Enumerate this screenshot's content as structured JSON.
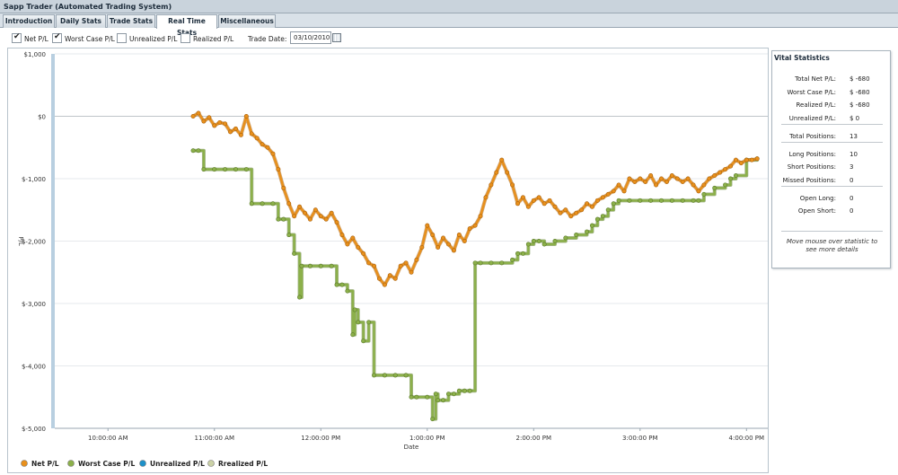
{
  "window": {
    "title": "Sapp Trader (Automated Trading System)"
  },
  "tabs": [
    {
      "label": "Introduction",
      "active": false
    },
    {
      "label": "Daily Stats",
      "active": false
    },
    {
      "label": "Trade Stats",
      "active": false
    },
    {
      "label": "Real Time Stats",
      "active": true
    },
    {
      "label": "Miscellaneous",
      "active": false
    }
  ],
  "toolbar": {
    "checkboxes": [
      {
        "label": "Net P/L",
        "checked": true
      },
      {
        "label": "Worst Case P/L",
        "checked": true
      },
      {
        "label": "Unrealized P/L",
        "checked": false
      },
      {
        "label": "Realized P/L",
        "checked": false
      }
    ],
    "trade_date_label": "Trade Date:",
    "trade_date_value": "03/10/2010"
  },
  "vital_statistics": {
    "title": "Vital Statistics",
    "groups": [
      [
        {
          "label": "Total Net P/L:",
          "value": "$ -680"
        },
        {
          "label": "Worst Case P/L:",
          "value": "$ -680"
        },
        {
          "label": "Realized P/L:",
          "value": "$ -680"
        },
        {
          "label": "Unrealized P/L:",
          "value": "$ 0"
        }
      ],
      [
        {
          "label": "Total Positions:",
          "value": "13"
        }
      ],
      [
        {
          "label": "Long Positions:",
          "value": "10"
        },
        {
          "label": "Short Positions:",
          "value": "3"
        },
        {
          "label": "Missed Positions:",
          "value": "0"
        }
      ],
      [
        {
          "label": "Open Long:",
          "value": "0"
        },
        {
          "label": "Open Short:",
          "value": "0"
        }
      ]
    ],
    "hint": "Move mouse over statistic to see more details"
  },
  "chart_data": {
    "type": "line",
    "xlabel": "Date",
    "ylabel": "P/L",
    "x_unit": "hours (time of day)",
    "xlim": [
      9.5,
      16.2
    ],
    "ylim": [
      -5000,
      1000
    ],
    "y_ticks": [
      1000,
      0,
      -1000,
      -2000,
      -3000,
      -4000,
      -5000
    ],
    "y_tick_labels": [
      "$1,000",
      "$0",
      "$-1,000",
      "$-2,000",
      "$-3,000",
      "$-4,000",
      "$-5,000"
    ],
    "x_ticks": [
      10,
      11,
      12,
      13,
      14,
      15,
      16
    ],
    "x_tick_labels": [
      "10:00:00 AM",
      "11:00:00 AM",
      "12:00:00 PM",
      "1:00:00 PM",
      "2:00:00 PM",
      "3:00:00 PM",
      "4:00:00 PM"
    ],
    "grid": true,
    "legend_position": "bottom",
    "series": [
      {
        "name": "Net P/L",
        "color": "#e8901c",
        "visible": true,
        "points": [
          [
            10.8,
            0
          ],
          [
            10.85,
            50
          ],
          [
            10.9,
            -80
          ],
          [
            10.95,
            -20
          ],
          [
            11.0,
            -150
          ],
          [
            11.05,
            -100
          ],
          [
            11.1,
            -120
          ],
          [
            11.15,
            -250
          ],
          [
            11.2,
            -200
          ],
          [
            11.25,
            -300
          ],
          [
            11.3,
            0
          ],
          [
            11.35,
            -280
          ],
          [
            11.4,
            -350
          ],
          [
            11.45,
            -450
          ],
          [
            11.5,
            -500
          ],
          [
            11.55,
            -600
          ],
          [
            11.6,
            -850
          ],
          [
            11.65,
            -1150
          ],
          [
            11.7,
            -1400
          ],
          [
            11.75,
            -1600
          ],
          [
            11.8,
            -1450
          ],
          [
            11.85,
            -1550
          ],
          [
            11.9,
            -1650
          ],
          [
            11.95,
            -1500
          ],
          [
            12.0,
            -1600
          ],
          [
            12.05,
            -1650
          ],
          [
            12.1,
            -1550
          ],
          [
            12.15,
            -1700
          ],
          [
            12.2,
            -1900
          ],
          [
            12.25,
            -2050
          ],
          [
            12.3,
            -1950
          ],
          [
            12.35,
            -2100
          ],
          [
            12.4,
            -2200
          ],
          [
            12.45,
            -2350
          ],
          [
            12.5,
            -2400
          ],
          [
            12.55,
            -2600
          ],
          [
            12.6,
            -2700
          ],
          [
            12.65,
            -2550
          ],
          [
            12.7,
            -2600
          ],
          [
            12.75,
            -2400
          ],
          [
            12.8,
            -2350
          ],
          [
            12.85,
            -2500
          ],
          [
            12.9,
            -2300
          ],
          [
            12.95,
            -2100
          ],
          [
            13.0,
            -1750
          ],
          [
            13.05,
            -1900
          ],
          [
            13.1,
            -2100
          ],
          [
            13.15,
            -1950
          ],
          [
            13.2,
            -2050
          ],
          [
            13.25,
            -2150
          ],
          [
            13.3,
            -1900
          ],
          [
            13.35,
            -2000
          ],
          [
            13.4,
            -1800
          ],
          [
            13.45,
            -1750
          ],
          [
            13.5,
            -1600
          ],
          [
            13.55,
            -1300
          ],
          [
            13.6,
            -1100
          ],
          [
            13.65,
            -900
          ],
          [
            13.7,
            -700
          ],
          [
            13.75,
            -900
          ],
          [
            13.8,
            -1100
          ],
          [
            13.85,
            -1400
          ],
          [
            13.9,
            -1300
          ],
          [
            13.95,
            -1450
          ],
          [
            14.0,
            -1350
          ],
          [
            14.05,
            -1300
          ],
          [
            14.1,
            -1400
          ],
          [
            14.15,
            -1350
          ],
          [
            14.2,
            -1450
          ],
          [
            14.25,
            -1550
          ],
          [
            14.3,
            -1500
          ],
          [
            14.35,
            -1600
          ],
          [
            14.4,
            -1550
          ],
          [
            14.45,
            -1500
          ],
          [
            14.5,
            -1400
          ],
          [
            14.55,
            -1450
          ],
          [
            14.6,
            -1350
          ],
          [
            14.65,
            -1300
          ],
          [
            14.7,
            -1250
          ],
          [
            14.75,
            -1200
          ],
          [
            14.8,
            -1100
          ],
          [
            14.85,
            -1200
          ],
          [
            14.9,
            -1000
          ],
          [
            14.95,
            -1050
          ],
          [
            15.0,
            -1000
          ],
          [
            15.05,
            -1050
          ],
          [
            15.1,
            -950
          ],
          [
            15.15,
            -1100
          ],
          [
            15.2,
            -1000
          ],
          [
            15.25,
            -1050
          ],
          [
            15.3,
            -950
          ],
          [
            15.35,
            -1000
          ],
          [
            15.4,
            -1050
          ],
          [
            15.45,
            -1000
          ],
          [
            15.5,
            -1100
          ],
          [
            15.55,
            -1200
          ],
          [
            15.6,
            -1100
          ],
          [
            15.65,
            -1000
          ],
          [
            15.7,
            -950
          ],
          [
            15.75,
            -900
          ],
          [
            15.8,
            -850
          ],
          [
            15.85,
            -800
          ],
          [
            15.9,
            -700
          ],
          [
            15.95,
            -750
          ],
          [
            16.0,
            -700
          ],
          [
            16.05,
            -700
          ],
          [
            16.1,
            -680
          ]
        ]
      },
      {
        "name": "Worst Case P/L",
        "color": "#8cb04a",
        "visible": true,
        "points": [
          [
            10.8,
            -550
          ],
          [
            10.85,
            -550
          ],
          [
            10.9,
            -850
          ],
          [
            11.0,
            -850
          ],
          [
            11.1,
            -850
          ],
          [
            11.2,
            -850
          ],
          [
            11.3,
            -850
          ],
          [
            11.35,
            -1400
          ],
          [
            11.45,
            -1400
          ],
          [
            11.55,
            -1400
          ],
          [
            11.6,
            -1650
          ],
          [
            11.65,
            -1650
          ],
          [
            11.7,
            -1900
          ],
          [
            11.75,
            -2200
          ],
          [
            11.8,
            -2900
          ],
          [
            11.82,
            -2400
          ],
          [
            11.9,
            -2400
          ],
          [
            12.0,
            -2400
          ],
          [
            12.1,
            -2400
          ],
          [
            12.15,
            -2700
          ],
          [
            12.2,
            -2700
          ],
          [
            12.25,
            -2800
          ],
          [
            12.3,
            -3500
          ],
          [
            12.32,
            -3100
          ],
          [
            12.35,
            -3300
          ],
          [
            12.4,
            -3600
          ],
          [
            12.45,
            -3300
          ],
          [
            12.5,
            -4150
          ],
          [
            12.6,
            -4150
          ],
          [
            12.7,
            -4150
          ],
          [
            12.8,
            -4150
          ],
          [
            12.85,
            -4500
          ],
          [
            12.9,
            -4500
          ],
          [
            13.0,
            -4500
          ],
          [
            13.05,
            -4850
          ],
          [
            13.08,
            -4450
          ],
          [
            13.1,
            -4550
          ],
          [
            13.15,
            -4550
          ],
          [
            13.2,
            -4450
          ],
          [
            13.25,
            -4450
          ],
          [
            13.3,
            -4400
          ],
          [
            13.35,
            -4400
          ],
          [
            13.4,
            -4400
          ],
          [
            13.45,
            -2350
          ],
          [
            13.5,
            -2350
          ],
          [
            13.6,
            -2350
          ],
          [
            13.7,
            -2350
          ],
          [
            13.8,
            -2300
          ],
          [
            13.85,
            -2200
          ],
          [
            13.9,
            -2200
          ],
          [
            13.95,
            -2050
          ],
          [
            14.0,
            -2000
          ],
          [
            14.05,
            -2000
          ],
          [
            14.1,
            -2050
          ],
          [
            14.2,
            -2000
          ],
          [
            14.3,
            -1950
          ],
          [
            14.4,
            -1900
          ],
          [
            14.5,
            -1850
          ],
          [
            14.55,
            -1750
          ],
          [
            14.6,
            -1650
          ],
          [
            14.65,
            -1600
          ],
          [
            14.7,
            -1500
          ],
          [
            14.75,
            -1400
          ],
          [
            14.8,
            -1350
          ],
          [
            14.9,
            -1350
          ],
          [
            15.0,
            -1350
          ],
          [
            15.1,
            -1350
          ],
          [
            15.2,
            -1350
          ],
          [
            15.3,
            -1350
          ],
          [
            15.4,
            -1350
          ],
          [
            15.5,
            -1350
          ],
          [
            15.55,
            -1350
          ],
          [
            15.6,
            -1250
          ],
          [
            15.7,
            -1150
          ],
          [
            15.8,
            -1100
          ],
          [
            15.85,
            -1000
          ],
          [
            15.9,
            -950
          ],
          [
            16.0,
            -700
          ],
          [
            16.1,
            -680
          ]
        ]
      },
      {
        "name": "Unrealized P/L",
        "color": "#1e90c8",
        "visible": false,
        "points": []
      },
      {
        "name": "Rrealized P/L",
        "color": "#cbd1a6",
        "visible": false,
        "points": []
      }
    ]
  }
}
